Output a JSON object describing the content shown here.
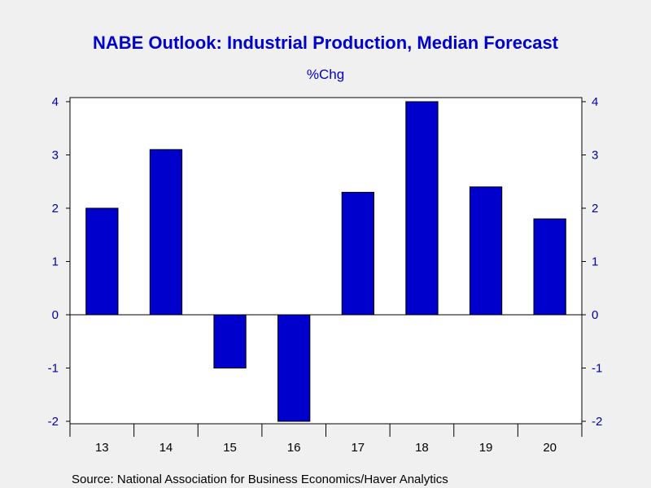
{
  "chart_data": {
    "type": "bar",
    "title": "NABE Outlook: Industrial Production, Median Forecast",
    "subtitle": "%Chg",
    "categories": [
      "13",
      "14",
      "15",
      "16",
      "17",
      "18",
      "19",
      "20"
    ],
    "values": [
      2.0,
      3.1,
      -1.0,
      -2.0,
      2.3,
      4.0,
      2.4,
      1.8
    ],
    "ylim": [
      -2,
      4
    ],
    "yticks": [
      "-2",
      "-1",
      "0",
      "1",
      "2",
      "3",
      "4"
    ],
    "grid": false,
    "legend": "none",
    "source": "Source:  National Association for Business Economics/Haver Analytics",
    "colors": {
      "bar_fill": "#0000cc",
      "bar_stroke": "#000000",
      "text_accent": "#0000cc",
      "plot_bg": "#ffffff",
      "page_bg": "#f0f0f0"
    }
  }
}
